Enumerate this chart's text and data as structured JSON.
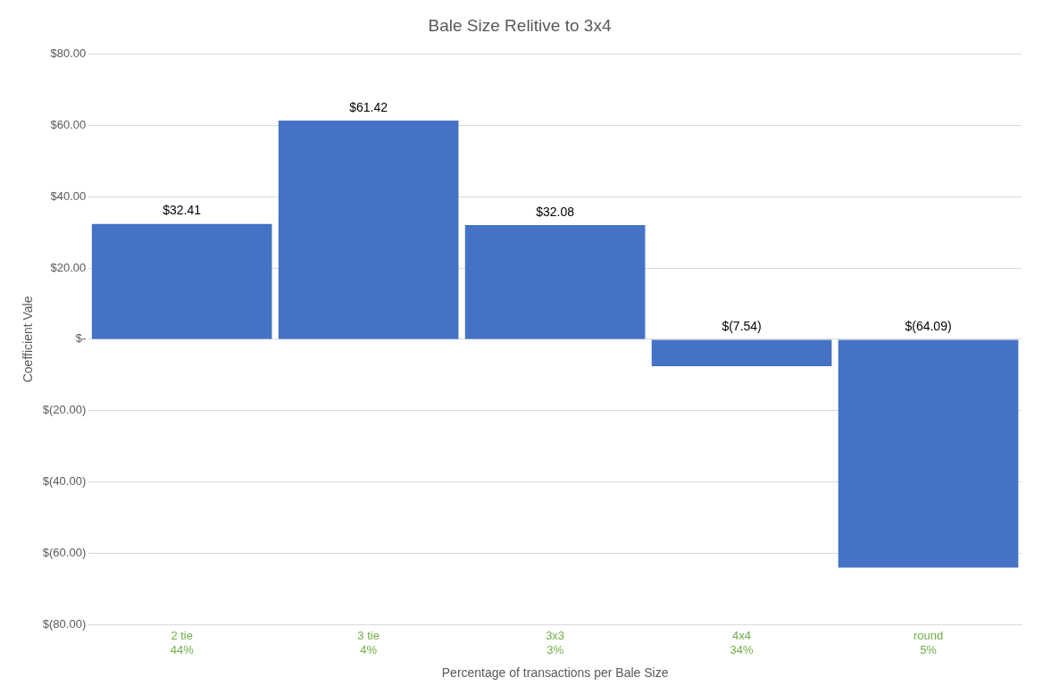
{
  "chart_data": {
    "type": "bar",
    "title": "Bale Size Relitive to 3x4",
    "xlabel": "Percentage of transactions per Bale Size",
    "ylabel": "Coefficient Vale",
    "categories": [
      "2 tie\n44%",
      "3 tie\n4%",
      "3x3\n3%",
      "4x4\n34%",
      "round\n5%"
    ],
    "values": [
      32.41,
      61.42,
      32.08,
      -7.54,
      -64.09
    ],
    "value_labels": [
      "$32.41",
      "$61.42",
      "$32.08",
      "$(7.54)",
      "$(64.09)"
    ],
    "color": "#4472c4",
    "ylim": [
      -80,
      80
    ],
    "yticks": [
      {
        "value": -80,
        "label": "$(80.00)"
      },
      {
        "value": -60,
        "label": "$(60.00)"
      },
      {
        "value": -40,
        "label": "$(40.00)"
      },
      {
        "value": -20,
        "label": "$(20.00)"
      },
      {
        "value": 0,
        "label": "$-"
      },
      {
        "value": 20,
        "label": "$20.00"
      },
      {
        "value": 40,
        "label": "$40.00"
      },
      {
        "value": 60,
        "label": "$60.00"
      },
      {
        "value": 80,
        "label": "$80.00"
      }
    ],
    "grid": "y",
    "legend": false
  }
}
